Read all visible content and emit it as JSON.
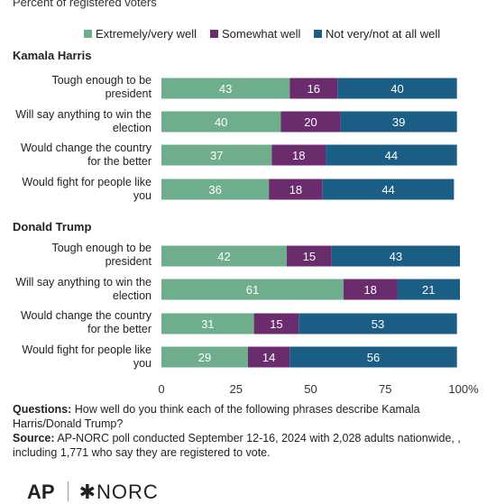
{
  "subtitle": "Percent of registered voters",
  "colors": {
    "high": "#6fae8c",
    "mid": "#6b2c6e",
    "low": "#1b5e85"
  },
  "legend": [
    {
      "label": "Extremely/very well",
      "color": "#6fae8c"
    },
    {
      "label": "Somewhat well",
      "color": "#6b2c6e"
    },
    {
      "label": "Not very/not at all well",
      "color": "#1b5e85"
    }
  ],
  "groups": [
    {
      "name": "Kamala Harris"
    },
    {
      "name": "Donald Trump"
    }
  ],
  "row_labels": [
    [
      "Tough enough to be",
      "president"
    ],
    [
      "Will say anything to win the",
      "election"
    ],
    [
      "Would change the country",
      "for the better"
    ],
    [
      "Would fight for people like",
      "you"
    ],
    [
      "Tough enough to be",
      "president"
    ],
    [
      "Will say anything to win the",
      "election"
    ],
    [
      "Would change the country",
      "for the better"
    ],
    [
      "Would fight for people like",
      "you"
    ]
  ],
  "chart_data": {
    "type": "bar",
    "orientation": "horizontal",
    "stacked": true,
    "xlim": [
      0,
      100
    ],
    "x_ticks": [
      "0",
      "25",
      "50",
      "75",
      "100%"
    ],
    "grid": false,
    "legend_position": "top",
    "series": [
      {
        "name": "Extremely/very well",
        "values": [
          43,
          40,
          37,
          36,
          42,
          61,
          31,
          29
        ]
      },
      {
        "name": "Somewhat well",
        "values": [
          16,
          20,
          18,
          18,
          15,
          18,
          15,
          14
        ]
      },
      {
        "name": "Not very/not at all well",
        "values": [
          40,
          39,
          44,
          44,
          43,
          21,
          53,
          56
        ]
      }
    ]
  },
  "notes": {
    "questions_label": "Questions:",
    "questions_text": "How well do you think each of the following phrases describe Kamala Harris/Donald Trump?",
    "source_label": "Source:",
    "source_text": "AP-NORC poll conducted September 12-16, 2024 with 2,028 adults nationwide, , including 1,771 who say they are registered to vote."
  },
  "logos": {
    "ap": "AP",
    "norc": "NORC"
  }
}
